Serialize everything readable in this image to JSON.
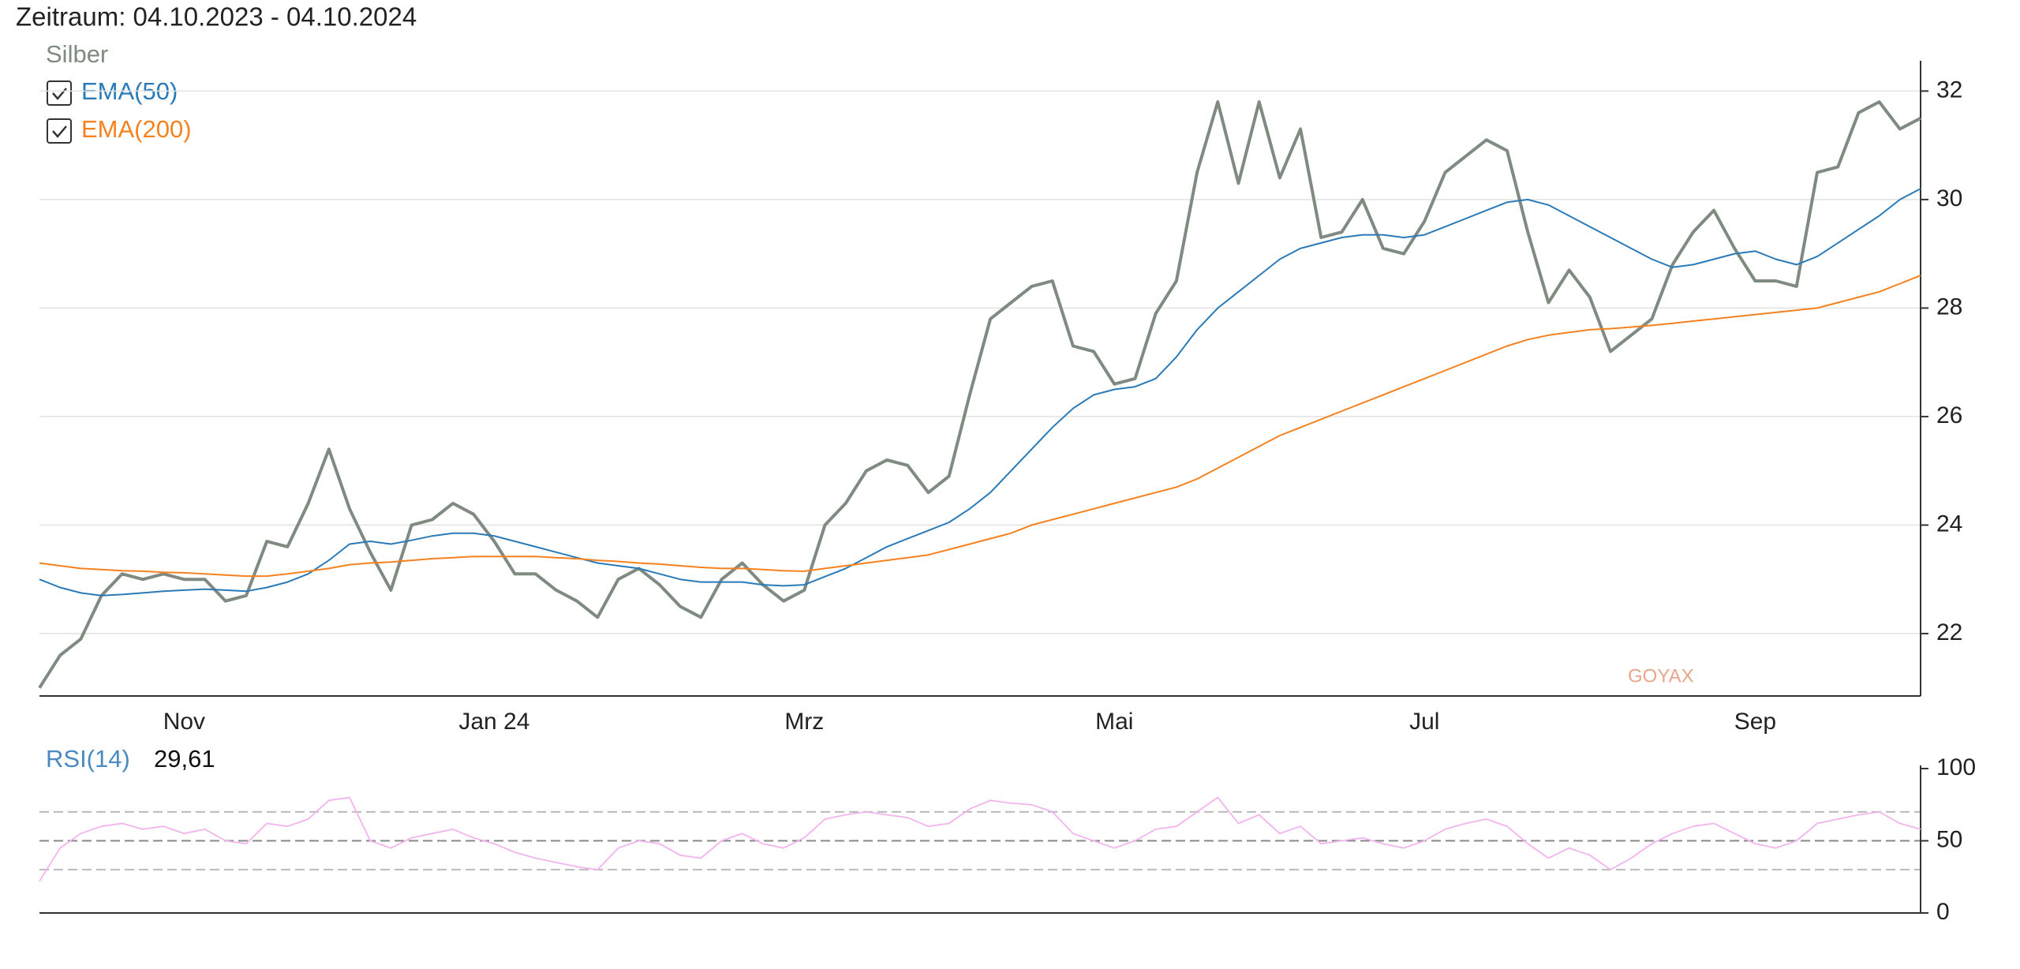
{
  "chart_data": [
    {
      "type": "line",
      "title": "Zeitraum: 04.10.2023 - 04.10.2024",
      "watermark": "GOYAX",
      "categories": [
        null,
        null,
        null,
        null,
        null,
        null,
        null,
        "Nov",
        null,
        null,
        null,
        null,
        null,
        null,
        null,
        null,
        null,
        null,
        null,
        null,
        null,
        null,
        "Jan 24",
        null,
        null,
        null,
        null,
        null,
        null,
        null,
        null,
        null,
        null,
        null,
        null,
        null,
        null,
        "Mrz",
        null,
        null,
        null,
        null,
        null,
        null,
        null,
        null,
        null,
        null,
        null,
        null,
        null,
        null,
        "Mai",
        null,
        null,
        null,
        null,
        null,
        null,
        null,
        null,
        null,
        null,
        null,
        null,
        null,
        null,
        "Jul",
        null,
        null,
        null,
        null,
        null,
        null,
        null,
        null,
        null,
        null,
        null,
        null,
        null,
        null,
        null,
        "Sep",
        null,
        null,
        null,
        null,
        null,
        null,
        null,
        null
      ],
      "series": [
        {
          "name": "Silber",
          "color": "#7f8a80",
          "values": [
            21.0,
            21.6,
            21.9,
            22.7,
            23.1,
            23.0,
            23.1,
            23.0,
            23.0,
            22.6,
            22.7,
            23.7,
            23.6,
            24.4,
            25.4,
            24.3,
            23.5,
            22.8,
            24.0,
            24.1,
            24.4,
            24.2,
            23.7,
            23.1,
            23.1,
            22.8,
            22.6,
            22.3,
            23.0,
            23.2,
            22.9,
            22.5,
            22.3,
            23.0,
            23.3,
            22.9,
            22.6,
            22.8,
            24.0,
            24.4,
            25.0,
            25.2,
            25.1,
            24.6,
            24.9,
            26.4,
            27.8,
            28.1,
            28.4,
            28.5,
            27.3,
            27.2,
            26.6,
            26.7,
            27.9,
            28.5,
            30.5,
            31.8,
            30.3,
            31.8,
            30.4,
            31.3,
            29.3,
            29.4,
            30.0,
            29.1,
            29.0,
            29.6,
            30.5,
            30.8,
            31.1,
            30.9,
            29.4,
            28.1,
            28.7,
            28.2,
            27.2,
            27.5,
            27.8,
            28.8,
            29.4,
            29.8,
            29.1,
            28.5,
            28.5,
            28.4,
            30.5,
            30.6,
            31.6,
            31.8,
            31.3,
            31.5
          ]
        },
        {
          "name": "EMA(50)",
          "color": "#2a7ab8",
          "values": [
            23.0,
            22.85,
            22.75,
            22.7,
            22.72,
            22.75,
            22.78,
            22.8,
            22.82,
            22.8,
            22.78,
            22.85,
            22.95,
            23.1,
            23.35,
            23.65,
            23.7,
            23.65,
            23.72,
            23.8,
            23.85,
            23.85,
            23.8,
            23.7,
            23.6,
            23.5,
            23.4,
            23.3,
            23.25,
            23.2,
            23.1,
            23.0,
            22.95,
            22.95,
            22.95,
            22.9,
            22.88,
            22.9,
            23.05,
            23.2,
            23.4,
            23.6,
            23.75,
            23.9,
            24.05,
            24.3,
            24.6,
            25.0,
            25.4,
            25.8,
            26.15,
            26.4,
            26.5,
            26.55,
            26.7,
            27.1,
            27.6,
            28.0,
            28.3,
            28.6,
            28.9,
            29.1,
            29.2,
            29.3,
            29.35,
            29.35,
            29.3,
            29.35,
            29.5,
            29.65,
            29.8,
            29.95,
            30.0,
            29.9,
            29.7,
            29.5,
            29.3,
            29.1,
            28.9,
            28.75,
            28.8,
            28.9,
            29.0,
            29.05,
            28.9,
            28.8,
            28.95,
            29.2,
            29.45,
            29.7,
            30.0,
            30.2
          ]
        },
        {
          "name": "EMA(200)",
          "color": "#f5821f",
          "values": [
            23.3,
            23.25,
            23.2,
            23.18,
            23.16,
            23.15,
            23.13,
            23.12,
            23.1,
            23.08,
            23.06,
            23.06,
            23.1,
            23.15,
            23.2,
            23.27,
            23.3,
            23.32,
            23.35,
            23.38,
            23.4,
            23.42,
            23.42,
            23.42,
            23.42,
            23.4,
            23.38,
            23.35,
            23.33,
            23.3,
            23.28,
            23.25,
            23.22,
            23.2,
            23.2,
            23.18,
            23.16,
            23.15,
            23.2,
            23.25,
            23.3,
            23.35,
            23.4,
            23.45,
            23.55,
            23.65,
            23.75,
            23.85,
            24.0,
            24.1,
            24.2,
            24.3,
            24.4,
            24.5,
            24.6,
            24.7,
            24.85,
            25.05,
            25.25,
            25.45,
            25.65,
            25.8,
            25.95,
            26.1,
            26.25,
            26.4,
            26.55,
            26.7,
            26.85,
            27.0,
            27.15,
            27.3,
            27.42,
            27.5,
            27.55,
            27.6,
            27.62,
            27.65,
            27.68,
            27.72,
            27.76,
            27.8,
            27.84,
            27.88,
            27.92,
            27.96,
            28.0,
            28.1,
            28.2,
            28.3,
            28.45,
            28.6
          ]
        }
      ],
      "ylim": [
        20.85,
        32.5
      ],
      "yticks": [
        22,
        24,
        26,
        28,
        30,
        32
      ],
      "grid": true
    },
    {
      "type": "line",
      "title": "RSI(14)",
      "annotation": "29,61",
      "series": [
        {
          "color": "#f2b3ee",
          "values": [
            22,
            45,
            55,
            60,
            62,
            58,
            60,
            55,
            58,
            50,
            48,
            62,
            60,
            65,
            78,
            80,
            50,
            45,
            52,
            55,
            58,
            52,
            48,
            42,
            38,
            35,
            32,
            30,
            45,
            50,
            48,
            40,
            38,
            50,
            55,
            48,
            45,
            52,
            65,
            68,
            70,
            68,
            66,
            60,
            62,
            72,
            78,
            76,
            75,
            70,
            55,
            50,
            45,
            50,
            58,
            60,
            70,
            80,
            62,
            68,
            55,
            60,
            48,
            50,
            52,
            48,
            45,
            50,
            58,
            62,
            65,
            60,
            48,
            38,
            45,
            40,
            30,
            38,
            48,
            55,
            60,
            62,
            55,
            48,
            45,
            50,
            62,
            65,
            68,
            70,
            62,
            58
          ]
        }
      ],
      "levels": [
        30,
        50,
        70
      ],
      "ylim": [
        0,
        100
      ],
      "yticks": [
        0,
        50,
        100
      ]
    }
  ]
}
